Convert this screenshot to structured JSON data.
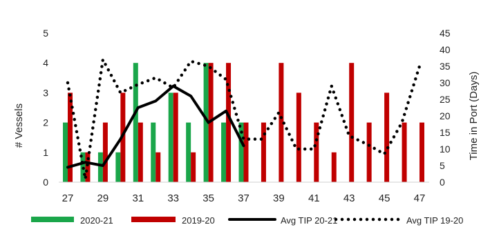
{
  "chart_data": {
    "type": "bar",
    "title": "",
    "xlabel": "",
    "ylabel": "# Vessels",
    "y2label": "Time in Port (Days)",
    "categories": [
      "27",
      "28",
      "29",
      "30",
      "31",
      "32",
      "33",
      "34",
      "35",
      "36",
      "37",
      "38",
      "39",
      "40",
      "41",
      "42",
      "43",
      "44",
      "45",
      "46",
      "47"
    ],
    "xtick_labels": [
      "27",
      "29",
      "31",
      "33",
      "35",
      "37",
      "39",
      "41",
      "43",
      "45",
      "47"
    ],
    "ylim": [
      0,
      5
    ],
    "yticks": [
      "0",
      "1",
      "2",
      "3",
      "4",
      "5"
    ],
    "y2lim": [
      0,
      45
    ],
    "y2ticks": [
      "0",
      "5",
      "10",
      "15",
      "20",
      "25",
      "30",
      "35",
      "40",
      "45"
    ],
    "grid": false,
    "legend_position": "bottom",
    "series": [
      {
        "name": "2020-21",
        "type": "bar",
        "axis": "left",
        "color": "#1aa64a",
        "values": [
          2,
          1,
          1,
          1,
          4,
          2,
          3,
          2,
          4,
          2,
          2,
          null,
          null,
          null,
          null,
          null,
          null,
          null,
          null,
          null,
          null
        ]
      },
      {
        "name": "2019-20",
        "type": "bar",
        "axis": "left",
        "color": "#c00000",
        "values": [
          3,
          1,
          2,
          3,
          2,
          1,
          3,
          1,
          4,
          4,
          2,
          2,
          4,
          3,
          2,
          1,
          4,
          2,
          3,
          2,
          2
        ]
      },
      {
        "name": "Avg TIP 20-21",
        "type": "line",
        "axis": "right",
        "color": "#000000",
        "dash": "solid",
        "values": [
          4.5,
          6,
          5,
          13,
          22.5,
          24.5,
          29,
          26,
          18,
          21.5,
          11,
          null,
          null,
          null,
          null,
          null,
          null,
          null,
          null,
          null,
          null
        ]
      },
      {
        "name": "Avg TIP 19-20",
        "type": "line",
        "axis": "right",
        "color": "#000000",
        "dash": "dotted",
        "values": [
          30,
          1,
          37,
          27,
          29.5,
          31.5,
          28.5,
          36.5,
          35,
          31,
          13,
          13,
          21,
          10,
          10,
          29,
          14,
          11.5,
          8.5,
          18,
          35
        ]
      }
    ]
  }
}
